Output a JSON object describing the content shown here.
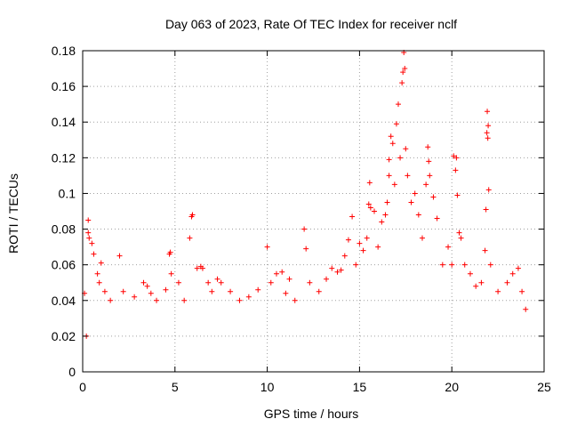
{
  "chart_data": {
    "type": "scatter",
    "title": "Day 063 of 2023, Rate Of TEC Index for receiver nclf",
    "xlabel": "GPS time / hours",
    "ylabel": "ROTI / TECUs",
    "xlim": [
      0,
      25
    ],
    "ylim": [
      0,
      0.18
    ],
    "xticks": [
      0,
      5,
      10,
      15,
      20,
      25
    ],
    "xtick_labels": [
      "0",
      "5",
      "10",
      "15",
      "20",
      "25"
    ],
    "yticks": [
      0,
      0.02,
      0.04,
      0.06,
      0.08,
      0.1,
      0.12,
      0.14,
      0.16,
      0.18
    ],
    "ytick_labels": [
      "0",
      "0.02",
      "0.04",
      "0.06",
      "0.08",
      "0.1",
      "0.12",
      "0.14",
      "0.16",
      "0.18"
    ],
    "grid": true,
    "marker": "+",
    "series": [
      {
        "name": "ROTI",
        "color": "#ff0000",
        "points": [
          [
            0.1,
            0.044
          ],
          [
            0.2,
            0.02
          ],
          [
            0.3,
            0.085
          ],
          [
            0.3,
            0.078
          ],
          [
            0.35,
            0.075
          ],
          [
            0.5,
            0.072
          ],
          [
            0.6,
            0.066
          ],
          [
            0.8,
            0.055
          ],
          [
            0.9,
            0.05
          ],
          [
            1.0,
            0.061
          ],
          [
            1.2,
            0.045
          ],
          [
            1.5,
            0.04
          ],
          [
            2.0,
            0.065
          ],
          [
            2.2,
            0.045
          ],
          [
            2.8,
            0.042
          ],
          [
            3.3,
            0.05
          ],
          [
            3.5,
            0.048
          ],
          [
            3.7,
            0.044
          ],
          [
            4.0,
            0.04
          ],
          [
            4.5,
            0.046
          ],
          [
            4.7,
            0.066
          ],
          [
            4.75,
            0.067
          ],
          [
            4.8,
            0.055
          ],
          [
            5.2,
            0.05
          ],
          [
            5.5,
            0.04
          ],
          [
            5.8,
            0.075
          ],
          [
            5.9,
            0.087
          ],
          [
            5.95,
            0.088
          ],
          [
            6.2,
            0.058
          ],
          [
            6.4,
            0.059
          ],
          [
            6.5,
            0.058
          ],
          [
            6.8,
            0.05
          ],
          [
            7.0,
            0.045
          ],
          [
            7.3,
            0.052
          ],
          [
            7.5,
            0.05
          ],
          [
            8.0,
            0.045
          ],
          [
            8.5,
            0.04
          ],
          [
            9.0,
            0.042
          ],
          [
            9.5,
            0.046
          ],
          [
            10.0,
            0.07
          ],
          [
            10.2,
            0.05
          ],
          [
            10.5,
            0.055
          ],
          [
            10.8,
            0.056
          ],
          [
            11.0,
            0.044
          ],
          [
            11.2,
            0.052
          ],
          [
            11.5,
            0.04
          ],
          [
            12.0,
            0.08
          ],
          [
            12.1,
            0.069
          ],
          [
            12.3,
            0.05
          ],
          [
            12.8,
            0.045
          ],
          [
            13.2,
            0.052
          ],
          [
            13.5,
            0.058
          ],
          [
            13.8,
            0.056
          ],
          [
            14.0,
            0.057
          ],
          [
            14.2,
            0.065
          ],
          [
            14.4,
            0.074
          ],
          [
            14.6,
            0.087
          ],
          [
            14.8,
            0.06
          ],
          [
            15.0,
            0.072
          ],
          [
            15.2,
            0.068
          ],
          [
            15.4,
            0.075
          ],
          [
            15.5,
            0.094
          ],
          [
            15.55,
            0.106
          ],
          [
            15.6,
            0.092
          ],
          [
            15.8,
            0.09
          ],
          [
            16.0,
            0.07
          ],
          [
            16.2,
            0.084
          ],
          [
            16.4,
            0.088
          ],
          [
            16.5,
            0.095
          ],
          [
            16.6,
            0.11
          ],
          [
            16.6,
            0.119
          ],
          [
            16.7,
            0.132
          ],
          [
            16.8,
            0.128
          ],
          [
            16.9,
            0.105
          ],
          [
            17.0,
            0.139
          ],
          [
            17.1,
            0.15
          ],
          [
            17.2,
            0.12
          ],
          [
            17.3,
            0.162
          ],
          [
            17.35,
            0.168
          ],
          [
            17.4,
            0.179
          ],
          [
            17.45,
            0.17
          ],
          [
            17.5,
            0.125
          ],
          [
            17.6,
            0.11
          ],
          [
            17.8,
            0.095
          ],
          [
            18.0,
            0.1
          ],
          [
            18.2,
            0.088
          ],
          [
            18.4,
            0.075
          ],
          [
            18.6,
            0.105
          ],
          [
            18.7,
            0.126
          ],
          [
            18.75,
            0.118
          ],
          [
            18.8,
            0.11
          ],
          [
            19.0,
            0.098
          ],
          [
            19.2,
            0.086
          ],
          [
            19.5,
            0.06
          ],
          [
            19.8,
            0.07
          ],
          [
            20.0,
            0.06
          ],
          [
            20.1,
            0.121
          ],
          [
            20.2,
            0.113
          ],
          [
            20.25,
            0.12
          ],
          [
            20.3,
            0.099
          ],
          [
            20.4,
            0.078
          ],
          [
            20.5,
            0.075
          ],
          [
            20.7,
            0.06
          ],
          [
            21.0,
            0.055
          ],
          [
            21.3,
            0.048
          ],
          [
            21.6,
            0.05
          ],
          [
            21.8,
            0.068
          ],
          [
            21.85,
            0.091
          ],
          [
            21.9,
            0.134
          ],
          [
            21.92,
            0.146
          ],
          [
            21.95,
            0.131
          ],
          [
            21.97,
            0.138
          ],
          [
            22.0,
            0.102
          ],
          [
            22.1,
            0.06
          ],
          [
            22.5,
            0.045
          ],
          [
            23.0,
            0.05
          ],
          [
            23.3,
            0.055
          ],
          [
            23.6,
            0.058
          ],
          [
            23.8,
            0.045
          ],
          [
            24.0,
            0.035
          ]
        ]
      }
    ]
  }
}
